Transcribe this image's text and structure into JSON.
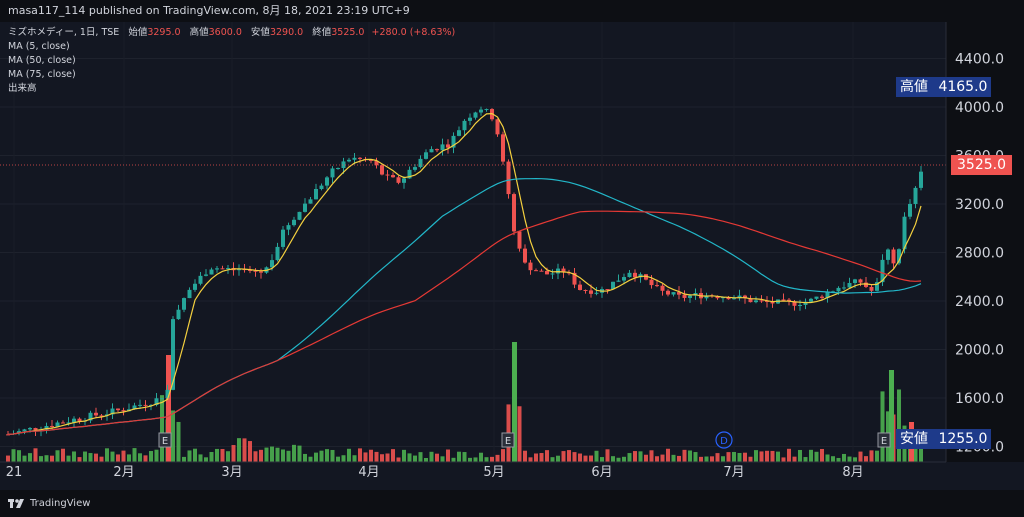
{
  "header": {
    "publisher_line": "masa117_114 published on TradingView.com, 8月 18, 2021 23:19 UTC+9"
  },
  "legend": {
    "symbol_line": "ミズホメディー, 1日, TSE",
    "open_label": "始値",
    "open_value": "3295.0",
    "high_label": "高値",
    "high_value": "3600.0",
    "low_label": "安値",
    "low_value": "3290.0",
    "close_label": "終値",
    "close_value": "3525.0",
    "change_value": "+280.0 (+8.63%)",
    "ma_labels": [
      "MA (5, close)",
      "MA (50, close)",
      "MA (75, close)"
    ],
    "volume_label": "出来高"
  },
  "tags": {
    "high_label": "高値",
    "high_value": "4165.0",
    "last_value": "3525.0",
    "low_label": "安値",
    "low_value": "1255.0"
  },
  "footer": {
    "brand": "TradingView"
  },
  "colors": {
    "up": "#26a69a",
    "down": "#ef5350",
    "ma5": "#f4d03f",
    "ma50": "#22b7c9",
    "ma75": "#e53935",
    "vol_up": "#4caf50",
    "vol_down": "#ef5350",
    "tag_bg": "#1e3a8a",
    "last_bg": "#ef5350"
  },
  "chart_data": {
    "type": "candlestick",
    "y_axis_ticks": [
      "4400.0",
      "4000.0",
      "3600.0",
      "3200.0",
      "2800.0",
      "2400.0",
      "2000.0",
      "1600.0",
      "1200.0"
    ],
    "ylim": [
      1200,
      4500
    ],
    "x_axis_ticks": [
      "21",
      "2月",
      "3月",
      "4月",
      "5月",
      "6月",
      "7月",
      "8月"
    ],
    "event_markers": [
      {
        "label": "E",
        "date": "2021-02-12"
      },
      {
        "label": "E",
        "date": "2021-05-13"
      },
      {
        "label": "D",
        "date": "2021-06-29"
      },
      {
        "label": "E",
        "date": "2021-08-12"
      }
    ],
    "last_price": 3525,
    "series": [
      {
        "name": "MA (5, close)",
        "values_approx": [
          1300,
          1500,
          1560,
          2500,
          2650,
          2600,
          3300,
          3580,
          3430,
          3900,
          2850,
          2600,
          2480,
          2650,
          2430,
          2400,
          2380,
          2500,
          2600,
          3200
        ]
      },
      {
        "name": "MA (50, close)",
        "values_approx": [
          1350,
          1360,
          1380,
          1500,
          1800,
          2200,
          2600,
          3000,
          3200,
          3400,
          3400,
          3300,
          3100,
          2850,
          2600,
          2500,
          2480,
          2500
        ]
      },
      {
        "name": "MA (75, close)",
        "values_approx": [
          1400,
          1380,
          1390,
          1480,
          1650,
          1850,
          2100,
          2350,
          2600,
          2850,
          3000,
          3100,
          3100,
          3050,
          2950,
          2850,
          2750,
          2650
        ]
      }
    ]
  }
}
